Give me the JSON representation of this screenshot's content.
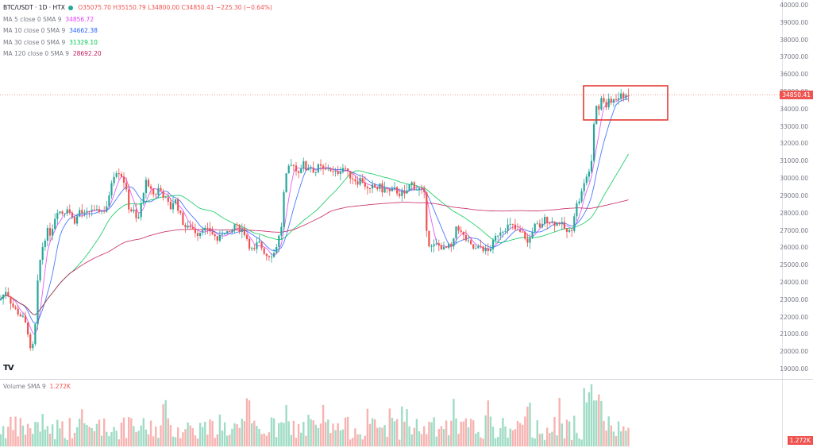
{
  "header": {
    "symbol": "BTC/USDT · 1D · HTX",
    "open": "O35075.70",
    "high": "H35150.79",
    "low": "L34800.00",
    "close": "C34850.41",
    "change": "−225.30 (−0.64%)"
  },
  "indicators": [
    {
      "label": "MA 5 close 0 SMA 9",
      "value": "34856.72",
      "color": "#e040fb"
    },
    {
      "label": "MA 10 close 0 SMA 9",
      "value": "34662.38",
      "color": "#2962ff"
    },
    {
      "label": "MA 30 close 0 SMA 9",
      "value": "31329.10",
      "color": "#00c853"
    },
    {
      "label": "MA 120 close 0 SMA 9",
      "value": "28692.20",
      "color": "#c2185b"
    }
  ],
  "volume": {
    "label": "Volume SMA 9",
    "value": "1.272K",
    "box": "1.272K"
  },
  "last_price_box": "34850.41",
  "logo": "TV",
  "colors": {
    "up": "#26a69a",
    "down": "#ef5350",
    "vol_up": "#9fdcc5",
    "vol_down": "#f7b3b1",
    "ma5": "#e040fb",
    "ma10": "#2962ff",
    "ma30": "#00c853",
    "ma120": "#c2185b",
    "highlight": "#e53935",
    "price_line": "#f28b82"
  },
  "chart_data": {
    "type": "candlestick",
    "y_ticks": [
      "40000.00",
      "39000.00",
      "38000.00",
      "37000.00",
      "36000.00",
      "35000.00",
      "34000.00",
      "33000.00",
      "32000.00",
      "31000.00",
      "30000.00",
      "29000.00",
      "28000.00",
      "27000.00",
      "26000.00",
      "25000.00",
      "24000.00",
      "23000.00",
      "22000.00",
      "21000.00",
      "20000.00",
      "19000.00"
    ],
    "ylim": [
      18500,
      40100
    ],
    "close_path": [
      [
        0,
        23000
      ],
      [
        8,
        23600
      ],
      [
        15,
        22700
      ],
      [
        22,
        22300
      ],
      [
        30,
        21900
      ],
      [
        35,
        21200
      ],
      [
        38,
        20050
      ],
      [
        42,
        20400
      ],
      [
        45,
        21800
      ],
      [
        48,
        24400
      ],
      [
        52,
        25800
      ],
      [
        56,
        26500
      ],
      [
        60,
        27000
      ],
      [
        64,
        26800
      ],
      [
        68,
        27600
      ],
      [
        72,
        28200
      ],
      [
        76,
        28100
      ],
      [
        80,
        28000
      ],
      [
        85,
        28400
      ],
      [
        90,
        27800
      ],
      [
        95,
        27500
      ],
      [
        100,
        28200
      ],
      [
        105,
        27900
      ],
      [
        110,
        28000
      ],
      [
        115,
        28300
      ],
      [
        120,
        28000
      ],
      [
        125,
        28200
      ],
      [
        130,
        28100
      ],
      [
        135,
        28500
      ],
      [
        138,
        29000
      ],
      [
        141,
        30000
      ],
      [
        145,
        30400
      ],
      [
        148,
        30500
      ],
      [
        152,
        30300
      ],
      [
        155,
        30000
      ],
      [
        158,
        29600
      ],
      [
        161,
        28600
      ],
      [
        164,
        28000
      ],
      [
        167,
        28400
      ],
      [
        170,
        27800
      ],
      [
        173,
        27500
      ],
      [
        176,
        28000
      ],
      [
        179,
        28900
      ],
      [
        182,
        29600
      ],
      [
        185,
        29900
      ],
      [
        188,
        29200
      ],
      [
        191,
        29600
      ],
      [
        194,
        28900
      ],
      [
        197,
        29200
      ],
      [
        200,
        29500
      ],
      [
        205,
        29100
      ],
      [
        210,
        28700
      ],
      [
        215,
        28300
      ],
      [
        220,
        28900
      ],
      [
        225,
        28200
      ],
      [
        230,
        27500
      ],
      [
        235,
        27100
      ],
      [
        240,
        27300
      ],
      [
        245,
        27000
      ],
      [
        250,
        26800
      ],
      [
        255,
        27200
      ],
      [
        260,
        27000
      ],
      [
        265,
        27000
      ],
      [
        270,
        26700
      ],
      [
        275,
        26400
      ],
      [
        280,
        26900
      ],
      [
        285,
        27000
      ],
      [
        290,
        26700
      ],
      [
        295,
        27400
      ],
      [
        300,
        27100
      ],
      [
        305,
        27100
      ],
      [
        310,
        26700
      ],
      [
        315,
        26000
      ],
      [
        320,
        25800
      ],
      [
        325,
        26400
      ],
      [
        330,
        26000
      ],
      [
        335,
        25600
      ],
      [
        340,
        25600
      ],
      [
        345,
        25700
      ],
      [
        350,
        26400
      ],
      [
        355,
        27400
      ],
      [
        358,
        29500
      ],
      [
        362,
        30500
      ],
      [
        366,
        30700
      ],
      [
        370,
        30900
      ],
      [
        374,
        30300
      ],
      [
        378,
        30600
      ],
      [
        382,
        30900
      ],
      [
        386,
        30500
      ],
      [
        390,
        30800
      ],
      [
        394,
        30500
      ],
      [
        398,
        30400
      ],
      [
        402,
        30800
      ],
      [
        406,
        30500
      ],
      [
        410,
        30500
      ],
      [
        414,
        30700
      ],
      [
        418,
        30400
      ],
      [
        422,
        30300
      ],
      [
        426,
        30400
      ],
      [
        430,
        30600
      ],
      [
        434,
        30700
      ],
      [
        438,
        30300
      ],
      [
        442,
        30100
      ],
      [
        446,
        30000
      ],
      [
        450,
        29800
      ],
      [
        454,
        30000
      ],
      [
        458,
        29800
      ],
      [
        462,
        29400
      ],
      [
        466,
        29300
      ],
      [
        470,
        29600
      ],
      [
        474,
        29400
      ],
      [
        478,
        29600
      ],
      [
        482,
        29300
      ],
      [
        486,
        29500
      ],
      [
        490,
        29200
      ],
      [
        494,
        29300
      ],
      [
        498,
        29400
      ],
      [
        502,
        29100
      ],
      [
        506,
        29200
      ],
      [
        510,
        29000
      ],
      [
        514,
        29500
      ],
      [
        518,
        29800
      ],
      [
        522,
        29500
      ],
      [
        526,
        29400
      ],
      [
        530,
        29400
      ],
      [
        535,
        29000
      ],
      [
        538,
        26600
      ],
      [
        542,
        26000
      ],
      [
        546,
        26100
      ],
      [
        550,
        26200
      ],
      [
        555,
        26100
      ],
      [
        560,
        25900
      ],
      [
        565,
        26100
      ],
      [
        570,
        26000
      ],
      [
        575,
        27400
      ],
      [
        580,
        26900
      ],
      [
        585,
        26600
      ],
      [
        590,
        26300
      ],
      [
        595,
        26000
      ],
      [
        600,
        25900
      ],
      [
        605,
        26100
      ],
      [
        610,
        25900
      ],
      [
        615,
        25800
      ],
      [
        620,
        26200
      ],
      [
        625,
        26700
      ],
      [
        630,
        27000
      ],
      [
        635,
        27100
      ],
      [
        640,
        27300
      ],
      [
        645,
        27300
      ],
      [
        650,
        27000
      ],
      [
        655,
        26900
      ],
      [
        660,
        26800
      ],
      [
        665,
        26200
      ],
      [
        670,
        27000
      ],
      [
        675,
        27400
      ],
      [
        680,
        27100
      ],
      [
        685,
        27700
      ],
      [
        690,
        27600
      ],
      [
        695,
        27500
      ],
      [
        700,
        27400
      ],
      [
        705,
        27500
      ],
      [
        710,
        27200
      ],
      [
        715,
        26800
      ],
      [
        720,
        27100
      ],
      [
        725,
        28400
      ],
      [
        730,
        28800
      ],
      [
        735,
        29600
      ],
      [
        740,
        30200
      ],
      [
        745,
        31200
      ],
      [
        748,
        33300
      ],
      [
        751,
        34300
      ],
      [
        754,
        34000
      ],
      [
        757,
        34800
      ],
      [
        760,
        34500
      ],
      [
        763,
        34100
      ],
      [
        766,
        34500
      ],
      [
        769,
        34300
      ],
      [
        772,
        34700
      ],
      [
        775,
        34500
      ],
      [
        778,
        34600
      ],
      [
        781,
        34800
      ],
      [
        784,
        34700
      ],
      [
        787,
        34900
      ],
      [
        790,
        34850
      ]
    ]
  }
}
